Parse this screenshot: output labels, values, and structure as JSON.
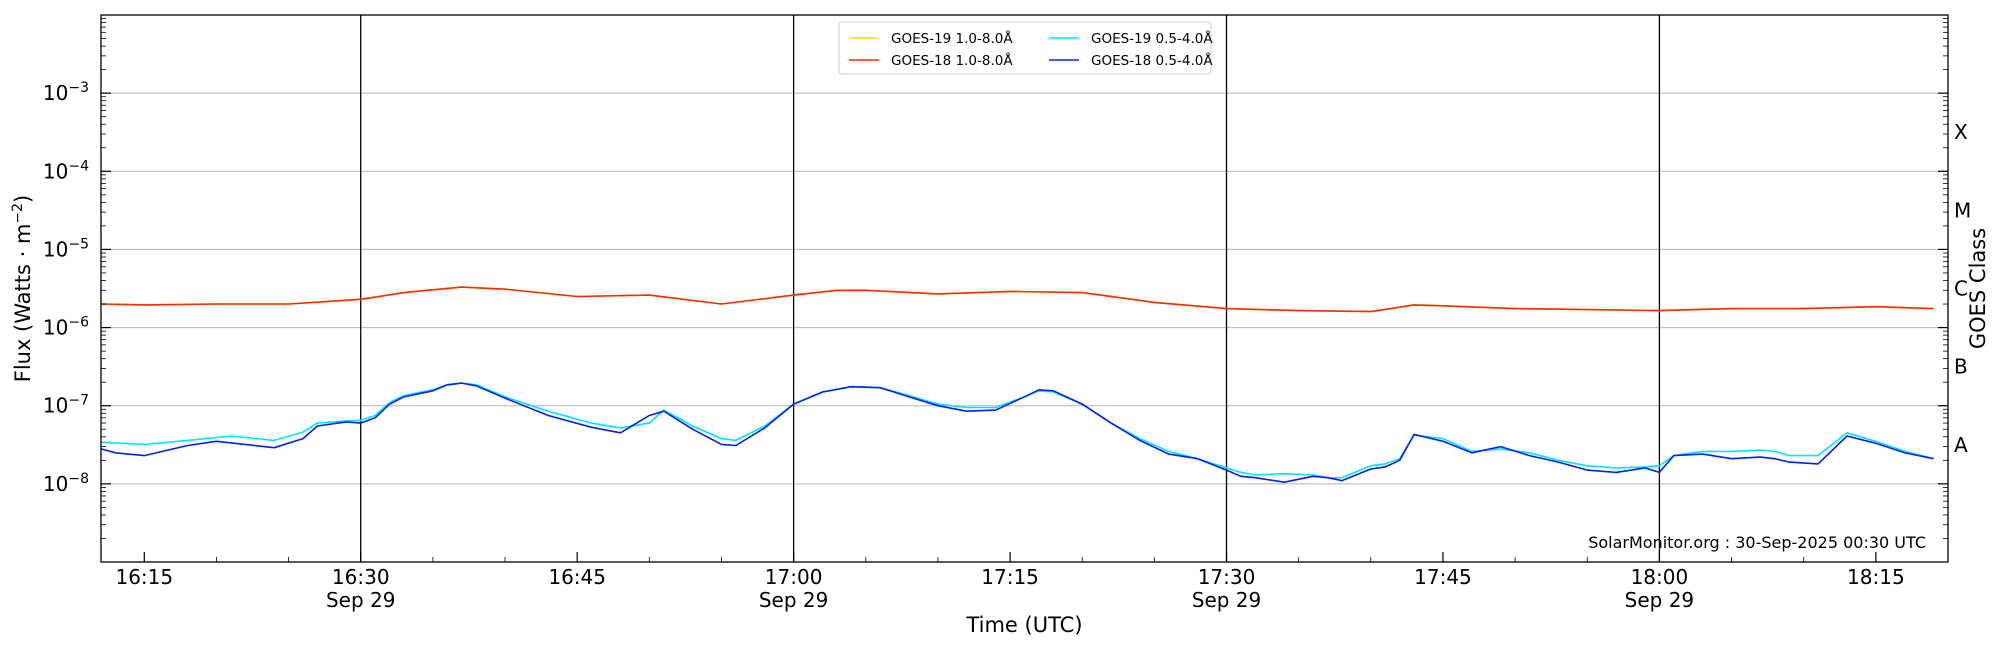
{
  "chart_data": {
    "type": "line",
    "xlabel": "Time (UTC)",
    "ylabel_main": "Flux (Watts · m",
    "ylabel_sup": "−2",
    "ylabel_close": ")",
    "right_axis_label": "GOES Class",
    "credit": "SolarMonitor.org : 30-Sep-2025 00:30 UTC",
    "x_range_minutes": [
      "16:12",
      "18:20"
    ],
    "y_scale": "log",
    "y_range": [
      1e-09,
      0.01
    ],
    "y_ticks": [
      {
        "value": 0.001,
        "label": "10",
        "exp": "−3"
      },
      {
        "value": 0.0001,
        "label": "10",
        "exp": "−4"
      },
      {
        "value": 1e-05,
        "label": "10",
        "exp": "−5"
      },
      {
        "value": 1e-06,
        "label": "10",
        "exp": "−6"
      },
      {
        "value": 1e-07,
        "label": "10",
        "exp": "−7"
      },
      {
        "value": 1e-08,
        "label": "10",
        "exp": "−8"
      }
    ],
    "x_ticks": [
      {
        "time": "16:15",
        "label": "16:15",
        "date": ""
      },
      {
        "time": "16:30",
        "label": "16:30",
        "date": "Sep 29"
      },
      {
        "time": "16:45",
        "label": "16:45",
        "date": ""
      },
      {
        "time": "17:00",
        "label": "17:00",
        "date": "Sep 29"
      },
      {
        "time": "17:15",
        "label": "17:15",
        "date": ""
      },
      {
        "time": "17:30",
        "label": "17:30",
        "date": "Sep 29"
      },
      {
        "time": "17:45",
        "label": "17:45",
        "date": ""
      },
      {
        "time": "18:00",
        "label": "18:00",
        "date": "Sep 29"
      },
      {
        "time": "18:15",
        "label": "18:15",
        "date": ""
      }
    ],
    "day_lines": [
      "16:30",
      "17:00",
      "17:30",
      "18:00"
    ],
    "class_labels": [
      {
        "label": "X",
        "value": 0.000316
      },
      {
        "label": "M",
        "value": 3.16e-05
      },
      {
        "label": "C",
        "value": 3.16e-06
      },
      {
        "label": "B",
        "value": 3.16e-07
      },
      {
        "label": "A",
        "value": 3.16e-08
      }
    ],
    "grid": "horizontal at major ticks",
    "legend_position": "top-center",
    "series": [
      {
        "name": "GOES-19 1.0-8.0Å",
        "color": "#ffd700",
        "x": [
          "16:12",
          "16:15",
          "16:20",
          "16:25",
          "16:30",
          "16:33",
          "16:37",
          "16:40",
          "16:45",
          "16:50",
          "16:55",
          "17:00",
          "17:03",
          "17:05",
          "17:10",
          "17:15",
          "17:20",
          "17:25",
          "17:30",
          "17:35",
          "17:40",
          "17:43",
          "17:45",
          "17:50",
          "17:55",
          "18:00",
          "18:05",
          "18:10",
          "18:15",
          "18:19"
        ],
        "y": [
          2e-06,
          1.95e-06,
          2e-06,
          2e-06,
          2.3e-06,
          2.8e-06,
          3.3e-06,
          3.1e-06,
          2.5e-06,
          2.6e-06,
          2e-06,
          2.6e-06,
          3e-06,
          3e-06,
          2.7e-06,
          2.9e-06,
          2.8e-06,
          2.1e-06,
          1.75e-06,
          1.65e-06,
          1.6e-06,
          1.95e-06,
          1.9e-06,
          1.75e-06,
          1.7e-06,
          1.65e-06,
          1.75e-06,
          1.75e-06,
          1.85e-06,
          1.75e-06
        ]
      },
      {
        "name": "GOES-18 1.0-8.0Å",
        "color": "#ff2a00",
        "x": [
          "16:12",
          "16:15",
          "16:20",
          "16:25",
          "16:30",
          "16:33",
          "16:37",
          "16:40",
          "16:45",
          "16:50",
          "16:55",
          "17:00",
          "17:03",
          "17:05",
          "17:10",
          "17:15",
          "17:20",
          "17:25",
          "17:30",
          "17:35",
          "17:40",
          "17:43",
          "17:45",
          "17:50",
          "17:55",
          "18:00",
          "18:05",
          "18:10",
          "18:15",
          "18:19"
        ],
        "y": [
          2e-06,
          1.95e-06,
          2e-06,
          2e-06,
          2.3e-06,
          2.8e-06,
          3.3e-06,
          3.1e-06,
          2.5e-06,
          2.6e-06,
          2e-06,
          2.6e-06,
          3e-06,
          3e-06,
          2.7e-06,
          2.9e-06,
          2.8e-06,
          2.1e-06,
          1.75e-06,
          1.65e-06,
          1.6e-06,
          1.95e-06,
          1.9e-06,
          1.75e-06,
          1.7e-06,
          1.65e-06,
          1.75e-06,
          1.75e-06,
          1.85e-06,
          1.75e-06
        ]
      },
      {
        "name": "GOES-19 0.5-4.0Å",
        "color": "#00e5ff",
        "x": [
          "16:12",
          "16:15",
          "16:18",
          "16:21",
          "16:24",
          "16:26",
          "16:27",
          "16:29",
          "16:30",
          "16:31",
          "16:32",
          "16:33",
          "16:35",
          "16:36",
          "16:37",
          "16:38",
          "16:40",
          "16:43",
          "16:46",
          "16:48",
          "16:50",
          "16:51",
          "16:53",
          "16:55",
          "16:56",
          "16:58",
          "17:00",
          "17:02",
          "17:04",
          "17:06",
          "17:08",
          "17:10",
          "17:12",
          "17:14",
          "17:16",
          "17:17",
          "17:18",
          "17:20",
          "17:22",
          "17:24",
          "17:26",
          "17:28",
          "17:30",
          "17:31",
          "17:32",
          "17:34",
          "17:36",
          "17:37",
          "17:38",
          "17:40",
          "17:41",
          "17:42",
          "17:43",
          "17:45",
          "17:47",
          "17:49",
          "17:51",
          "17:53",
          "17:55",
          "17:57",
          "17:59",
          "18:00",
          "18:01",
          "18:03",
          "18:05",
          "18:07",
          "18:08",
          "18:09",
          "18:11",
          "18:13",
          "18:15",
          "18:17",
          "18:19"
        ],
        "y": [
          3.4e-08,
          3.2e-08,
          3.6e-08,
          4.1e-08,
          3.6e-08,
          4.6e-08,
          6e-08,
          6.4e-08,
          6.5e-08,
          7.5e-08,
          1.1e-07,
          1.35e-07,
          1.6e-07,
          1.85e-07,
          1.95e-07,
          1.85e-07,
          1.3e-07,
          8.5e-08,
          6e-08,
          5.2e-08,
          6e-08,
          8.8e-08,
          5.5e-08,
          3.8e-08,
          3.6e-08,
          5.5e-08,
          1.05e-07,
          1.5e-07,
          1.75e-07,
          1.7e-07,
          1.35e-07,
          1.05e-07,
          9.5e-08,
          9.5e-08,
          1.3e-07,
          1.55e-07,
          1.5e-07,
          1.05e-07,
          6e-08,
          3.8e-08,
          2.6e-08,
          2.1e-08,
          1.6e-08,
          1.4e-08,
          1.3e-08,
          1.35e-08,
          1.3e-08,
          1.2e-08,
          1.2e-08,
          1.7e-08,
          1.8e-08,
          2.1e-08,
          4.2e-08,
          3.8e-08,
          2.6e-08,
          2.8e-08,
          2.5e-08,
          2e-08,
          1.7e-08,
          1.6e-08,
          1.65e-08,
          1.7e-08,
          2.3e-08,
          2.6e-08,
          2.6e-08,
          2.7e-08,
          2.6e-08,
          2.3e-08,
          2.3e-08,
          4.5e-08,
          3.5e-08,
          2.6e-08,
          2.1e-08
        ]
      },
      {
        "name": "GOES-18 0.5-4.0Å",
        "color": "#0022ee",
        "x": [
          "16:12",
          "16:13",
          "16:15",
          "16:18",
          "16:20",
          "16:22",
          "16:24",
          "16:26",
          "16:27",
          "16:29",
          "16:30",
          "16:31",
          "16:32",
          "16:33",
          "16:35",
          "16:36",
          "16:37",
          "16:38",
          "16:40",
          "16:43",
          "16:46",
          "16:48",
          "16:50",
          "16:51",
          "16:53",
          "16:55",
          "16:56",
          "16:58",
          "17:00",
          "17:02",
          "17:04",
          "17:06",
          "17:08",
          "17:10",
          "17:12",
          "17:14",
          "17:16",
          "17:17",
          "17:18",
          "17:20",
          "17:22",
          "17:24",
          "17:26",
          "17:28",
          "17:30",
          "17:31",
          "17:32",
          "17:34",
          "17:36",
          "17:37",
          "17:38",
          "17:40",
          "17:41",
          "17:42",
          "17:43",
          "17:45",
          "17:47",
          "17:49",
          "17:51",
          "17:53",
          "17:55",
          "17:57",
          "17:59",
          "18:00",
          "18:01",
          "18:03",
          "18:05",
          "18:07",
          "18:08",
          "18:09",
          "18:11",
          "18:13",
          "18:15",
          "18:17",
          "18:19"
        ],
        "y": [
          2.8e-08,
          2.5e-08,
          2.3e-08,
          3.1e-08,
          3.5e-08,
          3.2e-08,
          2.9e-08,
          3.8e-08,
          5.5e-08,
          6.2e-08,
          6e-08,
          7e-08,
          1.05e-07,
          1.3e-07,
          1.55e-07,
          1.85e-07,
          1.95e-07,
          1.8e-07,
          1.25e-07,
          7.5e-08,
          5.3e-08,
          4.5e-08,
          7.5e-08,
          8.5e-08,
          5e-08,
          3.2e-08,
          3.1e-08,
          5.2e-08,
          1.05e-07,
          1.5e-07,
          1.75e-07,
          1.7e-07,
          1.3e-07,
          1e-07,
          8.5e-08,
          8.8e-08,
          1.3e-07,
          1.6e-07,
          1.55e-07,
          1.05e-07,
          6e-08,
          3.6e-08,
          2.4e-08,
          2.1e-08,
          1.5e-08,
          1.25e-08,
          1.2e-08,
          1.05e-08,
          1.25e-08,
          1.2e-08,
          1.1e-08,
          1.55e-08,
          1.65e-08,
          2e-08,
          4.3e-08,
          3.5e-08,
          2.5e-08,
          3e-08,
          2.3e-08,
          1.9e-08,
          1.5e-08,
          1.4e-08,
          1.6e-08,
          1.4e-08,
          2.3e-08,
          2.4e-08,
          2.1e-08,
          2.2e-08,
          2.1e-08,
          1.9e-08,
          1.8e-08,
          4.1e-08,
          3.3e-08,
          2.5e-08,
          2.1e-08
        ]
      }
    ]
  }
}
